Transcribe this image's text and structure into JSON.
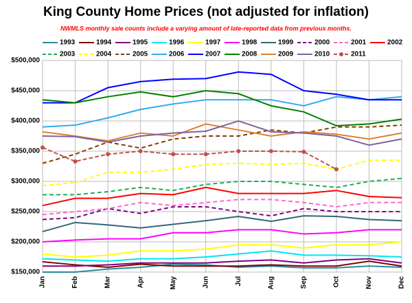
{
  "chart_data": {
    "type": "line",
    "title": "King County Home Prices (not adjusted for inflation)",
    "subtitle": "NWMLS monthly sale counts include a varying amount of late-reported data from previous months.",
    "categories": [
      "Jan",
      "Feb",
      "Mar",
      "Apr",
      "May",
      "Jun",
      "Jul",
      "Aug",
      "Sep",
      "Oct",
      "Nov",
      "Dec"
    ],
    "ylim": [
      150000,
      500000
    ],
    "yticks": [
      {
        "value": 150000,
        "label": "$150,000"
      },
      {
        "value": 200000,
        "label": "$200,000"
      },
      {
        "value": 250000,
        "label": "$250,000"
      },
      {
        "value": 300000,
        "label": "$300,000"
      },
      {
        "value": 350000,
        "label": "$350,000"
      },
      {
        "value": 400000,
        "label": "$400,000"
      },
      {
        "value": 450000,
        "label": "$450,000"
      },
      {
        "value": 500000,
        "label": "$500,000"
      }
    ],
    "grid": true,
    "series": [
      {
        "name": "1993",
        "color": "#2a8a9a",
        "dash": false,
        "values": [
          150000,
          150000,
          155000,
          158000,
          163000,
          162000,
          158000,
          160000,
          157000,
          157000,
          160000,
          158000
        ]
      },
      {
        "name": "1994",
        "color": "#800000",
        "dash": false,
        "values": [
          167000,
          162000,
          158000,
          163000,
          160000,
          160000,
          160000,
          162000,
          160000,
          160000,
          168000,
          160000
        ]
      },
      {
        "name": "1995",
        "color": "#800080",
        "dash": false,
        "values": [
          160000,
          160000,
          162000,
          165000,
          165000,
          165000,
          168000,
          170000,
          165000,
          170000,
          172000,
          165000
        ]
      },
      {
        "name": "1996",
        "color": "#00e5ee",
        "dash": false,
        "values": [
          172000,
          170000,
          168000,
          172000,
          172000,
          175000,
          180000,
          185000,
          178000,
          178000,
          177000,
          175000
        ]
      },
      {
        "name": "1997",
        "color": "#ffff00",
        "dash": false,
        "values": [
          180000,
          175000,
          178000,
          185000,
          185000,
          188000,
          195000,
          195000,
          190000,
          195000,
          195000,
          200000
        ]
      },
      {
        "name": "1998",
        "color": "#ff00ff",
        "dash": false,
        "values": [
          200000,
          203000,
          205000,
          205000,
          215000,
          215000,
          220000,
          220000,
          213000,
          215000,
          220000,
          220000
        ]
      },
      {
        "name": "1999",
        "color": "#336677",
        "dash": false,
        "values": [
          217000,
          232000,
          228000,
          223000,
          229000,
          235000,
          242000,
          234000,
          243000,
          242000,
          237000,
          235000
        ]
      },
      {
        "name": "2000",
        "color": "#800080",
        "dash": true,
        "values": [
          237000,
          240000,
          255000,
          247000,
          258000,
          258000,
          250000,
          243000,
          255000,
          250000,
          250000,
          250000
        ]
      },
      {
        "name": "2001",
        "color": "#ff66cc",
        "dash": true,
        "values": [
          245000,
          250000,
          255000,
          265000,
          260000,
          265000,
          270000,
          270000,
          265000,
          258000,
          265000,
          265000
        ]
      },
      {
        "name": "2002",
        "color": "#ff0000",
        "dash": false,
        "values": [
          260000,
          272000,
          272000,
          280000,
          278000,
          290000,
          280000,
          280000,
          280000,
          285000,
          275000,
          273000
        ]
      },
      {
        "name": "2003",
        "color": "#22aa55",
        "dash": true,
        "values": [
          278000,
          278000,
          283000,
          290000,
          285000,
          295000,
          300000,
          300000,
          295000,
          290000,
          300000,
          305000
        ]
      },
      {
        "name": "2004",
        "color": "#ffff00",
        "dash": true,
        "values": [
          293000,
          298000,
          315000,
          315000,
          320000,
          328000,
          330000,
          328000,
          330000,
          320000,
          335000,
          335000
        ]
      },
      {
        "name": "2005",
        "color": "#804000",
        "dash": true,
        "values": [
          330000,
          345000,
          365000,
          355000,
          370000,
          375000,
          375000,
          385000,
          380000,
          390000,
          390000,
          393000
        ]
      },
      {
        "name": "2006",
        "color": "#33aaee",
        "dash": false,
        "values": [
          390000,
          393000,
          405000,
          419000,
          428000,
          435000,
          435000,
          435000,
          425000,
          440000,
          435000,
          440000
        ]
      },
      {
        "name": "2007",
        "color": "#0000ff",
        "dash": false,
        "values": [
          430000,
          430000,
          455000,
          465000,
          469000,
          470000,
          481000,
          477000,
          450000,
          444000,
          435000,
          435000
        ]
      },
      {
        "name": "2008",
        "color": "#008000",
        "dash": false,
        "values": [
          435000,
          430000,
          440000,
          448000,
          440000,
          450000,
          445000,
          425000,
          415000,
          392000,
          395000,
          403000
        ]
      },
      {
        "name": "2009",
        "color": "#e08030",
        "dash": false,
        "values": [
          382000,
          375000,
          367000,
          380000,
          375000,
          395000,
          385000,
          375000,
          382000,
          378000,
          370000,
          380000
        ]
      },
      {
        "name": "2010",
        "color": "#8060a0",
        "dash": false,
        "values": [
          375000,
          374000,
          365000,
          375000,
          380000,
          383000,
          400000,
          382000,
          380000,
          375000,
          360000,
          370000
        ]
      },
      {
        "name": "2011",
        "color": "#c05050",
        "dash": true,
        "marker": true,
        "values": [
          356000,
          333000,
          345000,
          350000,
          345000,
          345000,
          350000,
          350000,
          349000,
          320000,
          null,
          null
        ]
      }
    ]
  }
}
